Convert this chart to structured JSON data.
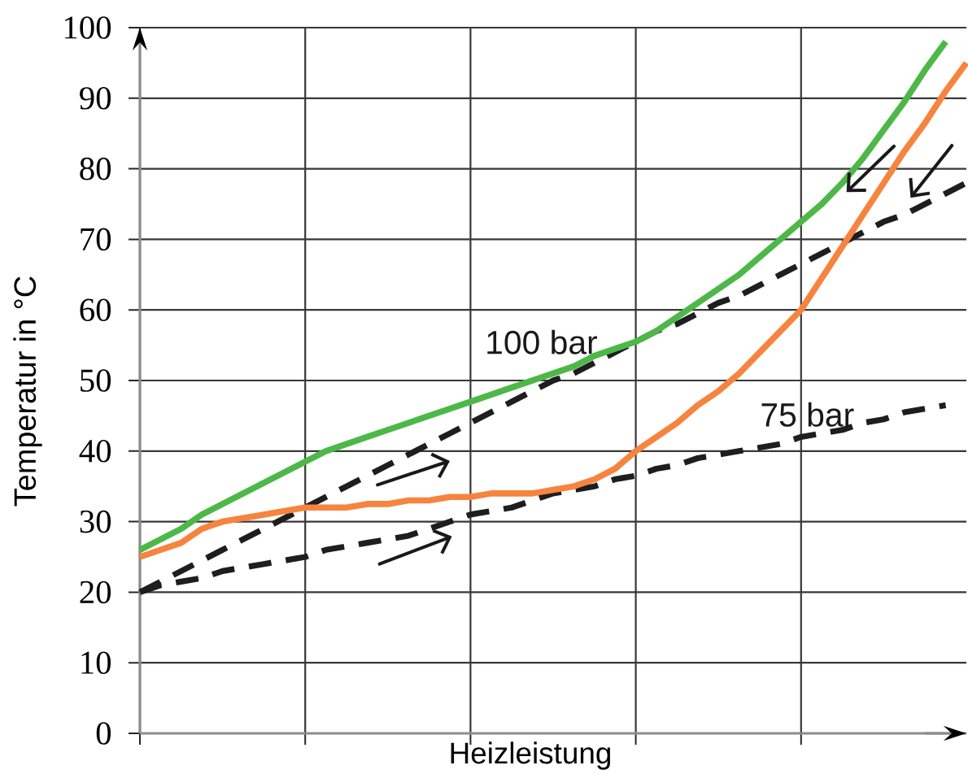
{
  "chart_data": {
    "type": "line",
    "xlabel": "Heizleistung",
    "ylabel": "Temperatur in °C",
    "categories": [
      null,
      null,
      null,
      null,
      null,
      null,
      null,
      null,
      null,
      null,
      null,
      null,
      null,
      null,
      null,
      null,
      null,
      null,
      null,
      null,
      null,
      null,
      null,
      null,
      null,
      null,
      null,
      null,
      null,
      null,
      null,
      null,
      null,
      null,
      null,
      null,
      null,
      null,
      null,
      null,
      null
    ],
    "ylim": [
      0,
      100
    ],
    "yticks": [
      0,
      10,
      20,
      30,
      40,
      50,
      60,
      70,
      80,
      90,
      100
    ],
    "grid": true,
    "series": [
      {
        "color": "#1e1e1e",
        "line_style": "dashed",
        "values": [
          20,
          21.5,
          23,
          24.5,
          26,
          27.5,
          29,
          30.5,
          32,
          33.5,
          35,
          36.5,
          38,
          39.5,
          41,
          42.5,
          44,
          45.5,
          47,
          48.5,
          50,
          51,
          52.5,
          54,
          55.5,
          57,
          58,
          59.5,
          61,
          62,
          63.5,
          65,
          66.5,
          68,
          69.5,
          71,
          72.5,
          73.5,
          75,
          76.5,
          78
        ]
      },
      {
        "name": "75 bar",
        "color": "#1e1e1e",
        "line_style": "dashed",
        "values": [
          20,
          21,
          21.5,
          22,
          23,
          23.5,
          24,
          24.5,
          25,
          26,
          26.5,
          27,
          27.5,
          28,
          29,
          30,
          31,
          31.5,
          32,
          33,
          34,
          34.5,
          35,
          36,
          36.5,
          37.5,
          38,
          39,
          39.5,
          40,
          40.5,
          41,
          42,
          42.5,
          43,
          44,
          44.5,
          45.5,
          46,
          46.5,
          null
        ]
      },
      {
        "name": "100 bar",
        "color": "#4db848",
        "values": [
          26,
          27.5,
          29,
          31,
          32.5,
          34,
          35.5,
          37,
          38.5,
          40,
          41,
          42,
          43,
          44,
          45,
          46,
          47,
          48,
          49,
          50,
          51,
          52,
          53.5,
          54.5,
          55.5,
          57,
          59,
          61,
          63,
          65,
          67.5,
          70,
          72.5,
          75,
          78,
          81.5,
          85.5,
          89.5,
          94,
          98,
          null
        ]
      },
      {
        "color": "#f6843f",
        "values": [
          25,
          26,
          27,
          29,
          30,
          30.5,
          31,
          31.5,
          32,
          32,
          32,
          32.5,
          32.5,
          33,
          33,
          33.5,
          33.5,
          34,
          34,
          34,
          34.5,
          35,
          36,
          37.5,
          40,
          42,
          44,
          46.5,
          48.5,
          51,
          54,
          57,
          60,
          64.5,
          69,
          73.5,
          78,
          82.5,
          86.5,
          91,
          95
        ]
      }
    ]
  }
}
